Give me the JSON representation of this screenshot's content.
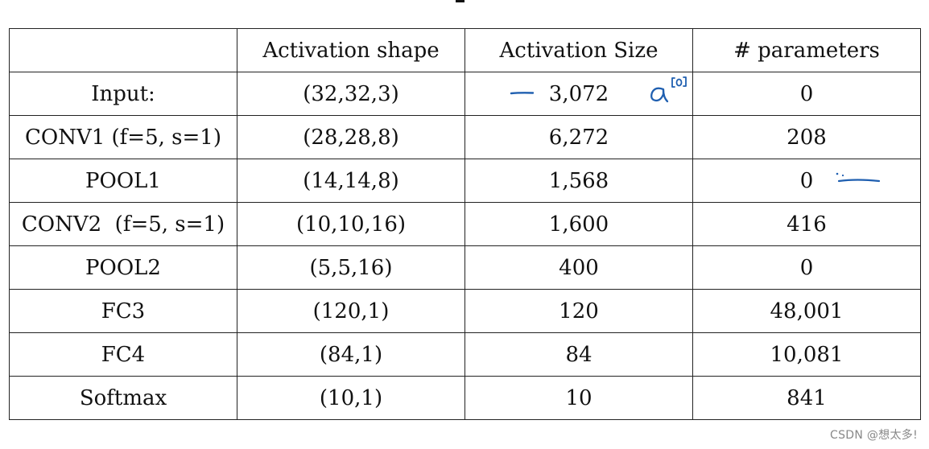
{
  "table": {
    "headers": [
      "",
      "Activation shape",
      "Activation Size",
      "# parameters"
    ],
    "rows": [
      {
        "layer": "Input:",
        "shape": "(32,32,3)",
        "size": "3,072",
        "params": "0"
      },
      {
        "layer": "CONV1 (f=5, s=1)",
        "shape": "(28,28,8)",
        "size": "6,272",
        "params": "208"
      },
      {
        "layer": "POOL1",
        "shape": "(14,14,8)",
        "size": "1,568",
        "params": "0"
      },
      {
        "layer": "CONV2  (f=5, s=1)",
        "shape": "(10,10,16)",
        "size": "1,600",
        "params": "416"
      },
      {
        "layer": "POOL2",
        "shape": "(5,5,16)",
        "size": "400",
        "params": "0"
      },
      {
        "layer": "FC3",
        "shape": "(120,1)",
        "size": "120",
        "params": "48,001"
      },
      {
        "layer": "FC4",
        "shape": "(84,1)",
        "size": "84",
        "params": "10,081"
      },
      {
        "layer": "Softmax",
        "shape": "(10,1)",
        "size": "10",
        "params": "841"
      }
    ]
  },
  "annotations": {
    "ink_color": "#1f5fb0",
    "input_size_note": "a[0]"
  },
  "watermark": "CSDN @想太多!"
}
